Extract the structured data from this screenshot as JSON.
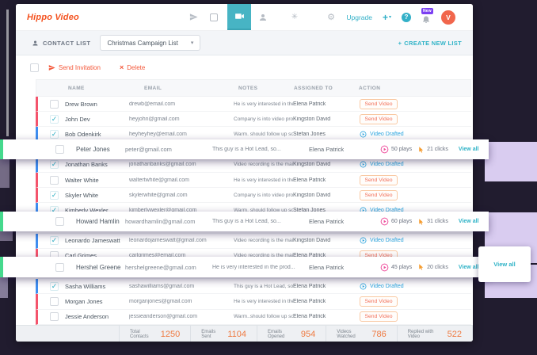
{
  "nav": {
    "logo": "Hippo Video",
    "upgrade_label": "Upgrade",
    "plus_label": "+",
    "help_label": "?",
    "new_badge": "New",
    "avatar_initial": "V",
    "icons": [
      "paper-plane",
      "screen",
      "video-camera",
      "contacts",
      "integrations",
      "settings"
    ],
    "active_icon": "video-camera"
  },
  "glyphs": {
    "caret": "▾",
    "check": "✓",
    "close": "×",
    "integrations": "✳",
    "settings": "⚙"
  },
  "subheader": {
    "title": "CONTACT LIST",
    "dropdown_value": "Christmas Campaign List",
    "create_plus": "+",
    "create_label": "CREATE NEW LIST"
  },
  "toolbar": {
    "send_invitation": "Send Invitation",
    "delete": "Delete"
  },
  "table": {
    "headers": [
      "NAME",
      "EMAIL",
      "NOTES",
      "ASSIGNED TO",
      "ACTION"
    ],
    "rows": [
      {
        "name": "Drew Brown",
        "email": "drewb@email.com",
        "notes": "He is very interested in the prod...",
        "assigned": "Elena Patrick",
        "action": "Send Video",
        "checked": false,
        "accent": "red"
      },
      {
        "name": "John Dev",
        "email": "heyjohn@gmail.com",
        "notes": "Company is into video produ...",
        "assigned": "Kingston David",
        "action": "Send Video",
        "checked": true,
        "accent": "red"
      },
      {
        "name": "Bob Odenkirk",
        "email": "heyheyhey@email.com",
        "notes": "Warm. should follow up so...",
        "assigned": "Stefan Jones",
        "action": "Video Drafted",
        "checked": true,
        "accent": "blue"
      },
      {
        "covered": true
      },
      {
        "name": "Jonathan Banks",
        "email": "jonathanbanks@gmail.com",
        "notes": "Video recording is the mai...",
        "assigned": "Kingston David",
        "action": "Video Drafted",
        "checked": true,
        "accent": "blue"
      },
      {
        "name": "Walter White",
        "email": "waltertwhite@gmail.com",
        "notes": "He is very interested in the prod...",
        "assigned": "Elena Patrick",
        "action": "Send Video",
        "checked": false,
        "accent": "red"
      },
      {
        "name": "Skyler White",
        "email": "skylerwhite@gmail.com",
        "notes": "Company is into video prod...",
        "assigned": "Kingston David",
        "action": "Send Video",
        "checked": true,
        "accent": "red"
      },
      {
        "name": "Kimberly Wexler",
        "email": "kimberlywexler@gmail.com",
        "notes": "Warm. should follow up so...",
        "assigned": "Stefan Jones",
        "action": "Video Drafted",
        "checked": true,
        "accent": "blue"
      },
      {
        "covered": true
      },
      {
        "name": "Leonardo Jameswatt",
        "email": "leonardojameswatt@gmail.com",
        "notes": "Video recording is the mai...",
        "assigned": "Kingston David",
        "action": "Video Drafted",
        "checked": true,
        "accent": "blue"
      },
      {
        "name": "Carl Grimes",
        "email": "carlgrimes@email.com",
        "notes": "Video recording is the mai....",
        "assigned": "Elena Patrick",
        "action": "Send Video",
        "checked": false,
        "accent": "red"
      },
      {
        "covered": true
      },
      {
        "name": "Sasha Williams",
        "email": "sashawilliams@gmail.com",
        "notes": "This guy is a Hot Lead, so....",
        "assigned": "Elena Patrick",
        "action": "Video Drafted",
        "checked": true,
        "accent": "blue"
      },
      {
        "name": "Morgan Jones",
        "email": "morganjones@gmail.com",
        "notes": "He is very interested in the prod...",
        "assigned": "Elena Patrick",
        "action": "Send Video",
        "checked": false,
        "accent": "red"
      },
      {
        "name": "Jessie Anderson",
        "email": "jessieanderson@gmail.com",
        "notes": "Warm..should follow up so...",
        "assigned": "Elena Patrick",
        "action": "Send Video",
        "checked": false,
        "accent": "red"
      }
    ]
  },
  "overlays": [
    {
      "name": "Peter Jones",
      "email": "peter@gmail.com",
      "notes": "This guy is a Hot Lead, so...",
      "assigned": "Elena Patrick",
      "plays": "50 plays",
      "clicks": "21 clicks",
      "view_all": "View all"
    },
    {
      "name": "Howard Hamlin",
      "email": "howardhamlin@gmail.com",
      "notes": "This guy is a Hot Lead, so...",
      "assigned": "Elena Patrick",
      "plays": "60 plays",
      "clicks": "31 clicks",
      "view_all": "View all"
    },
    {
      "name": "Hershel Greene",
      "email": "hershelgreene@gmail.com",
      "notes": "He is very interested in the prod...",
      "assigned": "Elena Patrick",
      "plays": "45 plays",
      "clicks": "20 clicks",
      "view_all": "View all"
    }
  ],
  "popup": {
    "view_all": "View all"
  },
  "footer": {
    "stats": [
      {
        "label": "Total Contacts",
        "value": "1250"
      },
      {
        "label": "Emails Sent",
        "value": "1104"
      },
      {
        "label": "Emails Opened",
        "value": "954"
      },
      {
        "label": "Videos Watched",
        "value": "786"
      },
      {
        "label": "Replied with Video",
        "value": "522"
      }
    ]
  },
  "colors": {
    "accents": {
      "red": "#f4546c",
      "blue": "#3e8ef0",
      "green": "#45d98d"
    },
    "brand_orange": "#f4511e",
    "teal": "#33b0c8",
    "drafted_blue": "#2ba6e0",
    "play_pink": "#ee4f9d",
    "click_orange": "#f59b2d",
    "stat_orange": "#ef7a41",
    "lavender": "#d9ccf0",
    "backdrop": "#211c2f",
    "badge_purple": "#7b3ff2",
    "avatar_orange": "#f1664c"
  }
}
